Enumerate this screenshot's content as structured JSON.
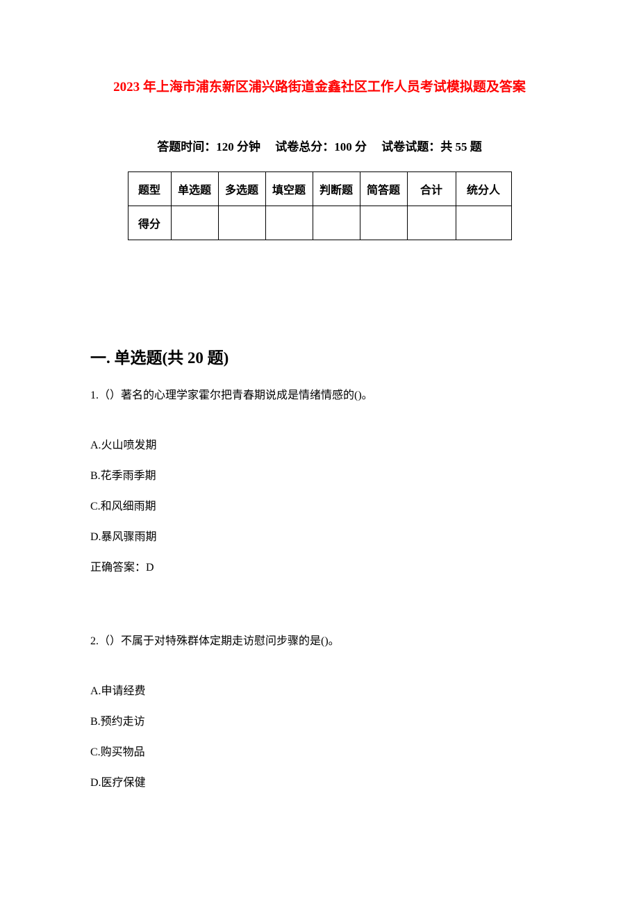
{
  "title": "2023 年上海市浦东新区浦兴路街道金鑫社区工作人员考试模拟题及答案",
  "exam_info": {
    "time_label": "答题时间：",
    "time_value": "120 分钟",
    "total_label": "试卷总分：",
    "total_value": "100 分",
    "count_label": "试卷试题：",
    "count_value": "共 55 题"
  },
  "score_table": {
    "headers": [
      "题型",
      "单选题",
      "多选题",
      "填空题",
      "判断题",
      "简答题",
      "合计",
      "统分人"
    ],
    "score_row_label": "得分",
    "columns": [
      {
        "key": "label",
        "width": 62
      },
      {
        "key": "single",
        "width": 68
      },
      {
        "key": "multi",
        "width": 68
      },
      {
        "key": "fill",
        "width": 68
      },
      {
        "key": "judge",
        "width": 68
      },
      {
        "key": "short",
        "width": 68
      },
      {
        "key": "total",
        "width": 70
      },
      {
        "key": "scorer",
        "width": 80
      }
    ],
    "border_color": "#000000"
  },
  "section1": {
    "title": "一. 单选题(共 20 题)"
  },
  "q1": {
    "text": "1.（）著名的心理学家霍尔把青春期说成是情绪情感的()。",
    "options": {
      "a": "A.火山喷发期",
      "b": "B.花季雨季期",
      "c": "C.和风细雨期",
      "d": "D.暴风骤雨期"
    },
    "answer": "正确答案：D"
  },
  "q2": {
    "text": "2.（）不属于对特殊群体定期走访慰问步骤的是()。",
    "options": {
      "a": "A.申请经费",
      "b": "B.预约走访",
      "c": "C.购买物品",
      "d": "D.医疗保健"
    }
  },
  "colors": {
    "title_color": "#ff0000",
    "text_color": "#000000",
    "background_color": "#ffffff"
  },
  "typography": {
    "title_fontsize": 19,
    "info_fontsize": 17,
    "section_fontsize": 23,
    "body_fontsize": 16
  }
}
